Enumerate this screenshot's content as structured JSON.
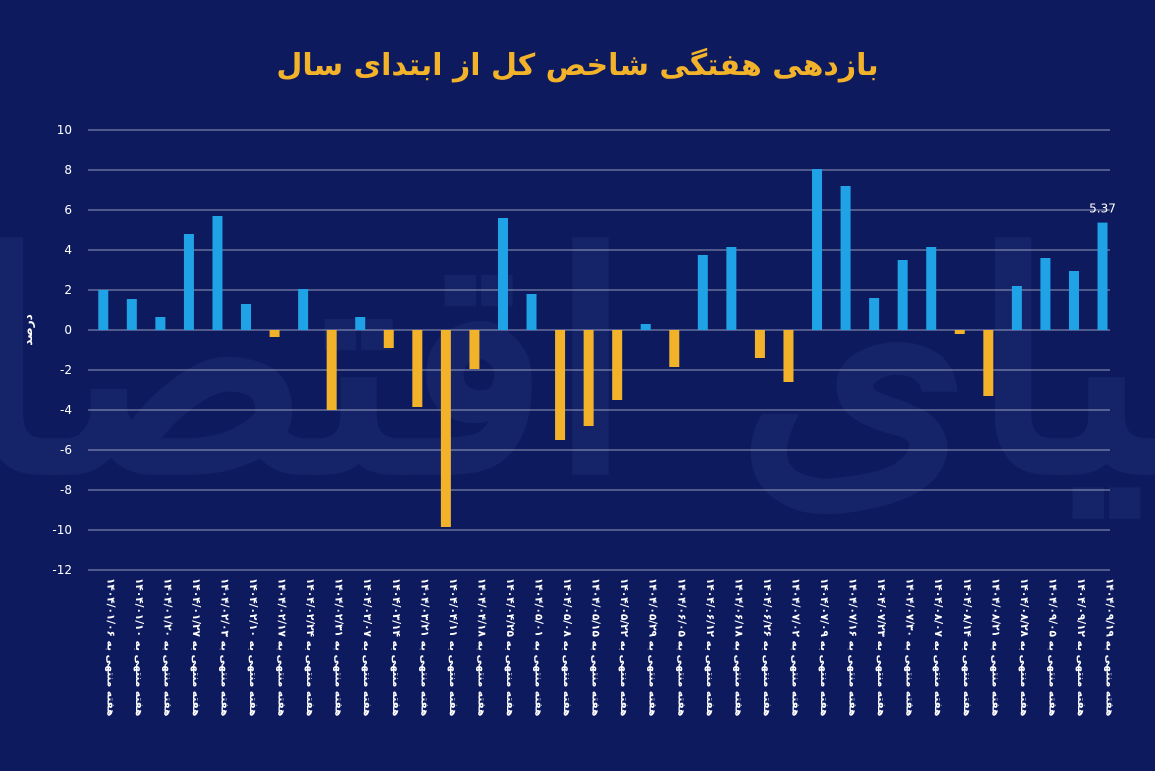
{
  "colors": {
    "background": "#0d1a5e",
    "positive": "#1fa3e6",
    "negative": "#f2b22a",
    "title": "#f2b22a",
    "grid": "#ffffff"
  },
  "chart_data": {
    "type": "bar",
    "title": "بازدهی هفتگی شاخص کل از ابتدای سال",
    "ylabel": "درصد",
    "xlabel": "",
    "ylim": [
      -12,
      10
    ],
    "yticks": [
      10,
      8,
      6,
      4,
      2,
      0,
      -2,
      -4,
      -6,
      -8,
      -10,
      -12
    ],
    "ytick_labels": [
      "10",
      "8",
      "6",
      "4",
      "2",
      "0",
      "-2",
      "-4",
      "-6",
      "-8",
      "-10",
      "-12"
    ],
    "grid": true,
    "legend": "none",
    "categories": [
      "هفته منتهی به ۱۴۰۴/۰۱/۰۶",
      "هفته منتهی به ۱۴۰۴/۰۱/۱۰",
      "هفته منتهی به ۱۴۰۴/۰۱/۲۰",
      "هفته منتهی به ۱۴۰۴/۰۱/۲۷",
      "هفته منتهی به ۱۴۰۴/۰۲/۰۳",
      "هفته منتهی به ۱۴۰۴/۰۲/۱۰",
      "هفته منتهی به ۱۴۰۴/۰۲/۱۷",
      "هفته منتهی به ۱۴۰۴/۰۲/۲۴",
      "هفته منتهی به ۱۴۰۴/۰۲/۳۱",
      "هفته منتهی به ۱۴۰۴/۰۳/۰۷",
      "هفته منتهی به ۱۴۰۴/۰۳/۱۴",
      "هفته منتهی به ۱۴۰۴/۰۳/۲۱",
      "هفته منتهی به ۱۴۰۴/۰۴/۱۱",
      "هفته منتهی به ۱۴۰۴/۰۴/۱۸",
      "هفته منتهی به ۱۴۰۴/۰۴/۲۵",
      "هفته منتهی به ۱۴۰۴/۰۵/۰۱",
      "هفته منتهی به ۱۴۰۴/۰۵/۰۸",
      "هفته منتهی به ۱۴۰۴/۰۵/۱۵",
      "هفته منتهی به ۱۴۰۴/۰۵/۲۲",
      "هفته منتهی به ۱۴۰۴/۰۵/۲۹",
      "هفته منتهی به ۱۴۰۴/۰۶/۰۵",
      "هفته منتهی به ۱۴۰۴/۰۶/۱۲",
      "هفته منتهی به ۱۴۰۴/۰۶/۱۸",
      "هفته منتهی به ۱۴۰۴/۰۶/۲۶",
      "هفته منتهی به ۱۴۰۴/۰۷/۰۲",
      "هفته منتهی به ۱۴۰۴/۰۷/۰۹",
      "هفته منتهی به ۱۴۰۴/۰۷/۱۶",
      "هفته منتهی به ۱۴۰۴/۰۷/۲۳",
      "هفته منتهی به ۱۴۰۴/۰۷/۳۰",
      "هفته منتهی به ۱۴۰۴/۰۸/۰۷",
      "هفته منتهی به ۱۴۰۴/۰۸/۱۴",
      "هفته منتهی به ۱۴۰۴/۰۸/۲۱",
      "هفته منتهی به ۱۴۰۴/۰۸/۲۸",
      "هفته منتهی به ۱۴۰۴/۰۹/۰۵",
      "هفته منتهی به ۱۴۰۴/۰۹/۱۲",
      "هفته منتهی به ۱۴۰۴/۰۹/۱۹"
    ],
    "values": [
      2.0,
      1.55,
      0.65,
      4.8,
      5.7,
      1.3,
      -0.35,
      2.05,
      -4.0,
      0.65,
      -0.9,
      -3.85,
      -9.85,
      -1.95,
      5.6,
      1.8,
      -5.5,
      -4.8,
      -3.5,
      0.3,
      -1.85,
      3.75,
      4.15,
      -1.4,
      -2.6,
      8.05,
      7.2,
      1.6,
      3.5,
      4.15,
      -0.2,
      -3.3,
      2.2,
      3.6,
      2.95,
      5.37
    ],
    "data_labels": [
      {
        "index": 35,
        "text": "5.37"
      }
    ]
  }
}
